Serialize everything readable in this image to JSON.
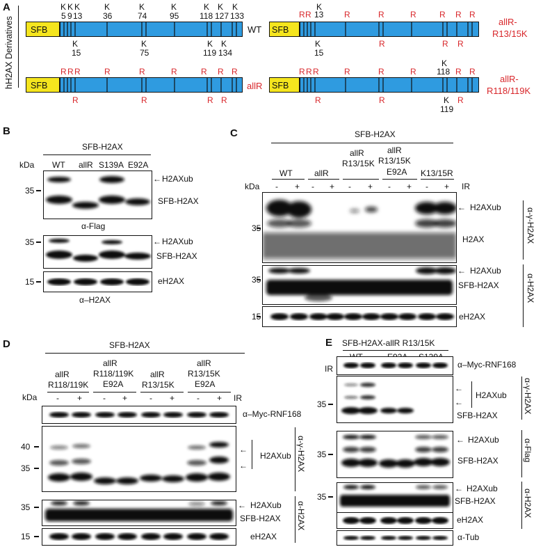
{
  "panelA": {
    "letter": "A",
    "side_label": "hH2AX Derivatives",
    "sfb": "SFB",
    "constructs": [
      {
        "name": "WT",
        "top_k": [
          "K",
          "K",
          "K",
          "K",
          "K",
          "K",
          "K",
          "K",
          "K"
        ],
        "top_nums": [
          "5",
          "9",
          "13",
          "36",
          "74",
          "95",
          "118",
          "127",
          "133"
        ],
        "bottom_k": [
          "K",
          "K",
          "K",
          "K"
        ],
        "bottom_nums": [
          "15",
          "75",
          "119",
          "134"
        ]
      },
      {
        "name": "allR-\nR13/15K",
        "name1": "allR-",
        "name2": "R13/15K",
        "top_k": "K",
        "top_num": "13",
        "bottom_k": "K",
        "bottom_num": "15"
      },
      {
        "name": "allR"
      },
      {
        "name1": "allR-",
        "name2": "R118/119K",
        "top_k": "K",
        "top_num": "118",
        "bottom_k": "K",
        "bottom_num": "119"
      }
    ],
    "r": "R"
  },
  "panelB": {
    "letter": "B",
    "header": "SFB-H2AX",
    "kda": "kDa",
    "lanes": [
      "WT",
      "allR",
      "S139A",
      "E92A"
    ],
    "blot1": {
      "m35": "35",
      "label_ub": "H2AXub",
      "label_main": "SFB-H2AX",
      "antibody": "α-Flag"
    },
    "blot2": {
      "m35": "35",
      "label_ub": "H2AXub",
      "label_main": "SFB-H2AX"
    },
    "blot3": {
      "m15": "15",
      "label": "eH2AX",
      "antibody": "α–H2AX"
    }
  },
  "panelC": {
    "letter": "C",
    "header": "SFB-H2AX",
    "kda": "kDa",
    "ir": "IR",
    "lanes": [
      "WT",
      "allR",
      "allR\nR13/15K",
      "allR\nR13/15K\nE92A",
      "K13/15R"
    ],
    "lane_wt": "WT",
    "lane_allr": "allR",
    "lane_r1a": "allR",
    "lane_r1b": "R13/15K",
    "lane_r2a": "allR",
    "lane_r2b": "R13/15K",
    "lane_r2c": "E92A",
    "lane_k": "K13/15R",
    "minus": "-",
    "plus": "+",
    "blot1": {
      "m35": "35",
      "label_ub": "H2AXub",
      "label_main": "H2AX",
      "antibody": "α-γ-H2AX"
    },
    "blot2": {
      "m35": "35",
      "label_ub": "H2AXub",
      "label_main": "SFB-H2AX",
      "antibody": "α-H2AX"
    },
    "blot3": {
      "m15": "15",
      "label": "eH2AX"
    }
  },
  "panelD": {
    "letter": "D",
    "header": "SFB-H2AX",
    "kda": "kDa",
    "ir": "IR",
    "lane1a": "allR",
    "lane1b": "R118/119K",
    "lane2a": "allR",
    "lane2b": "R118/119K",
    "lane2c": "E92A",
    "lane3a": "allR",
    "lane3b": "R13/15K",
    "lane4a": "allR",
    "lane4b": "R13/15K",
    "lane4c": "E92A",
    "minus": "-",
    "plus": "+",
    "blot0": {
      "label": "α–Myc-RNF168"
    },
    "blot1": {
      "m40": "40",
      "m35": "35",
      "label_ub": "H2AXub",
      "antibody": "α-γ-H2AX"
    },
    "blot2": {
      "m35": "35",
      "label_ub": "H2AXub",
      "label_main": "SFB-H2AX",
      "antibody": "α-H2AX"
    },
    "blot3": {
      "m15": "15",
      "label": "eH2AX"
    }
  },
  "panelE": {
    "letter": "E",
    "header": "SFB-H2AX-allR R13/15K",
    "lanes": [
      "WT",
      "E92A",
      "S139A"
    ],
    "ir": "IR",
    "minus": "-",
    "plus": "+",
    "blot0": {
      "label": "α–Myc-RNF168"
    },
    "blot1": {
      "m35": "35",
      "label_ub": "H2AXub",
      "label_main": "SFB-H2AX",
      "antibody": "α-γ-H2AX"
    },
    "blot2": {
      "m35": "35",
      "label_ub": "H2AXub",
      "label_main": "SFB-H2AX",
      "antibody": "α-Flag"
    },
    "blot3": {
      "m35": "35",
      "label_ub": "H2AXub",
      "label_main": "SFB-H2AX",
      "antibody": "α-H2AX"
    },
    "blot4": {
      "label": "eH2AX"
    },
    "blot5": {
      "label": "α-Tub"
    }
  },
  "colors": {
    "sfb_box": "#f5e51e",
    "h2ax_bar": "#2f9be0",
    "mutation_red": "#d8262a",
    "band": "#111111"
  }
}
